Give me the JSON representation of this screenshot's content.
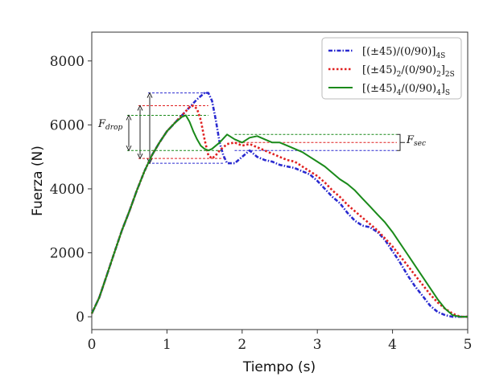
{
  "chart_data": {
    "type": "line",
    "xlabel": "Tiempo (s)",
    "ylabel": "Fuerza (N)",
    "xlim": [
      0,
      5
    ],
    "ylim": [
      -400,
      8900
    ],
    "x_ticks": [
      "0",
      "1",
      "2",
      "3",
      "4",
      "5"
    ],
    "x_tick_values": [
      0,
      1,
      2,
      3,
      4,
      5
    ],
    "y_ticks": [
      "0",
      "2000",
      "4000",
      "6000",
      "8000"
    ],
    "y_tick_values": [
      0,
      2000,
      4000,
      6000,
      8000
    ],
    "legend_position": "top-right",
    "series": [
      {
        "name": "[(±45)/(0/90)]4S",
        "color": "#2a2ad0",
        "style": "dashdot",
        "x": [
          0,
          0.1,
          0.2,
          0.3,
          0.4,
          0.5,
          0.6,
          0.7,
          0.8,
          0.9,
          1.0,
          1.1,
          1.2,
          1.3,
          1.4,
          1.5,
          1.55,
          1.6,
          1.65,
          1.7,
          1.75,
          1.8,
          1.9,
          2.0,
          2.1,
          2.2,
          2.3,
          2.4,
          2.5,
          2.6,
          2.7,
          2.8,
          2.9,
          3.0,
          3.1,
          3.2,
          3.3,
          3.4,
          3.5,
          3.6,
          3.7,
          3.8,
          3.9,
          4.0,
          4.1,
          4.2,
          4.3,
          4.4,
          4.5,
          4.6,
          4.7,
          4.8,
          4.9,
          5.0
        ],
        "y": [
          100,
          600,
          1300,
          2000,
          2700,
          3300,
          3950,
          4550,
          5050,
          5450,
          5800,
          6050,
          6300,
          6550,
          6800,
          7000,
          7000,
          6750,
          6150,
          5450,
          5050,
          4800,
          4800,
          5000,
          5200,
          5000,
          4900,
          4850,
          4750,
          4700,
          4650,
          4550,
          4450,
          4250,
          4000,
          3750,
          3550,
          3250,
          3000,
          2850,
          2800,
          2650,
          2400,
          2050,
          1700,
          1300,
          950,
          650,
          350,
          150,
          50,
          0,
          0,
          0
        ]
      },
      {
        "name": "[(±45)2/(0/90)2]2S",
        "color": "#e02020",
        "style": "dotted",
        "x": [
          0,
          0.1,
          0.2,
          0.3,
          0.4,
          0.5,
          0.6,
          0.7,
          0.8,
          0.9,
          1.0,
          1.1,
          1.2,
          1.3,
          1.35,
          1.4,
          1.45,
          1.5,
          1.55,
          1.6,
          1.65,
          1.7,
          1.8,
          1.9,
          2.0,
          2.1,
          2.2,
          2.3,
          2.4,
          2.5,
          2.6,
          2.7,
          2.8,
          2.9,
          3.0,
          3.1,
          3.2,
          3.3,
          3.4,
          3.5,
          3.6,
          3.7,
          3.8,
          3.9,
          4.0,
          4.1,
          4.2,
          4.3,
          4.4,
          4.5,
          4.6,
          4.7,
          4.8,
          4.9,
          5.0
        ],
        "y": [
          100,
          600,
          1300,
          2000,
          2700,
          3300,
          3950,
          4550,
          5050,
          5450,
          5800,
          6050,
          6300,
          6550,
          6600,
          6500,
          6150,
          5550,
          5050,
          4950,
          5050,
          5200,
          5400,
          5450,
          5350,
          5400,
          5300,
          5200,
          5100,
          5000,
          4900,
          4850,
          4700,
          4550,
          4400,
          4200,
          3950,
          3750,
          3500,
          3300,
          3100,
          2900,
          2700,
          2450,
          2200,
          1900,
          1600,
          1300,
          1000,
          700,
          450,
          250,
          100,
          0,
          0
        ]
      },
      {
        "name": "[(±45)4/(0/90)4]S",
        "color": "#1a8a1a",
        "style": "solid",
        "x": [
          0,
          0.1,
          0.2,
          0.3,
          0.4,
          0.5,
          0.6,
          0.7,
          0.8,
          0.9,
          1.0,
          1.1,
          1.2,
          1.25,
          1.3,
          1.35,
          1.4,
          1.45,
          1.5,
          1.55,
          1.6,
          1.7,
          1.8,
          1.9,
          2.0,
          2.1,
          2.2,
          2.3,
          2.4,
          2.5,
          2.6,
          2.7,
          2.8,
          2.9,
          3.0,
          3.1,
          3.2,
          3.3,
          3.4,
          3.5,
          3.6,
          3.7,
          3.8,
          3.9,
          4.0,
          4.1,
          4.2,
          4.3,
          4.4,
          4.5,
          4.6,
          4.7,
          4.8,
          4.9,
          5.0
        ],
        "y": [
          100,
          600,
          1300,
          2000,
          2700,
          3300,
          3950,
          4550,
          5050,
          5450,
          5800,
          6050,
          6250,
          6300,
          6100,
          5800,
          5550,
          5350,
          5250,
          5200,
          5250,
          5450,
          5700,
          5550,
          5450,
          5600,
          5650,
          5550,
          5450,
          5450,
          5350,
          5250,
          5150,
          5000,
          4850,
          4700,
          4500,
          4300,
          4150,
          3950,
          3700,
          3450,
          3200,
          2950,
          2650,
          2300,
          1950,
          1600,
          1250,
          900,
          550,
          250,
          50,
          0,
          0
        ]
      }
    ],
    "annotations": [
      {
        "label": "F",
        "subscript": "drop"
      },
      {
        "label": "F",
        "subscript": "sec"
      }
    ]
  },
  "legend": [
    {
      "base": "[(±45)/(0/90)]",
      "sub": "4S"
    },
    {
      "base": "[(±45)",
      "sub1": "2",
      "mid": "/(0/90)",
      "sub2": "2",
      "end": "]",
      "sub3": "2S"
    },
    {
      "base": "[(±45)",
      "sub1": "4",
      "mid": "/(0/90)",
      "sub2": "4",
      "end": "]",
      "sub3": "S"
    }
  ]
}
